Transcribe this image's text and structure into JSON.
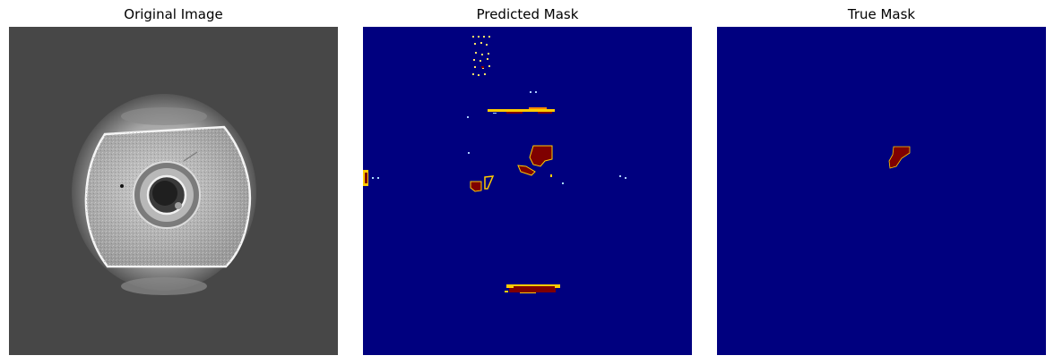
{
  "panels": [
    {
      "title": "Original Image"
    },
    {
      "title": "Predicted Mask"
    },
    {
      "title": "True Mask"
    }
  ],
  "colors": {
    "mask_background": "#00007f",
    "mask_defect": "#7f0000",
    "mask_edge": "#ffcc00",
    "image_background": "#474747"
  }
}
